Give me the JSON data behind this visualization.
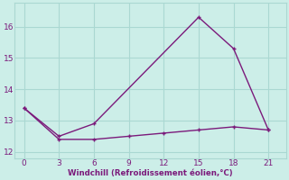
{
  "xlabel": "Windchill (Refroidissement éolien,°C)",
  "line_big_x": [
    0,
    3,
    6,
    15,
    18,
    21
  ],
  "line_big_y": [
    13.4,
    12.5,
    12.9,
    16.3,
    15.3,
    12.7
  ],
  "line_flat_x": [
    0,
    3,
    6,
    9,
    12,
    15,
    18,
    21
  ],
  "line_flat_y": [
    13.4,
    12.4,
    12.4,
    12.5,
    12.6,
    12.7,
    12.8,
    12.7
  ],
  "line_color": "#7b1a7b",
  "bg_color": "#cceee8",
  "grid_color": "#aad8d2",
  "tick_color": "#7b1a7b",
  "label_color": "#7b1a7b",
  "xlim": [
    -0.8,
    22.5
  ],
  "ylim": [
    11.8,
    16.75
  ],
  "xticks": [
    0,
    3,
    6,
    9,
    12,
    15,
    18,
    21
  ],
  "yticks": [
    12,
    13,
    14,
    15,
    16
  ],
  "marker_size": 3.5,
  "linewidth": 1.0
}
